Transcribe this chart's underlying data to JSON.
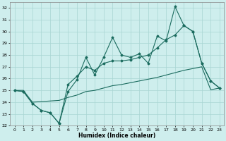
{
  "xlabel": "Humidex (Indice chaleur)",
  "xlim": [
    -0.5,
    23.5
  ],
  "ylim": [
    22,
    32.5
  ],
  "yticks": [
    22,
    23,
    24,
    25,
    26,
    27,
    28,
    29,
    30,
    31,
    32
  ],
  "xticks": [
    0,
    1,
    2,
    3,
    4,
    5,
    6,
    7,
    8,
    9,
    10,
    11,
    12,
    13,
    14,
    15,
    16,
    17,
    18,
    19,
    20,
    21,
    22,
    23
  ],
  "bg_color": "#ceeeed",
  "grid_color": "#a8d5d3",
  "line_color": "#1a6b5e",
  "line1_y": [
    25.0,
    24.9,
    23.9,
    23.3,
    23.1,
    22.2,
    24.9,
    25.9,
    27.8,
    26.3,
    27.8,
    29.5,
    28.0,
    27.8,
    28.1,
    27.3,
    29.6,
    29.2,
    32.1,
    30.5,
    30.0,
    27.3,
    25.8,
    25.2
  ],
  "line2_y": [
    25.0,
    24.9,
    23.9,
    23.3,
    23.1,
    22.2,
    25.5,
    26.2,
    27.0,
    26.7,
    27.3,
    27.5,
    27.5,
    27.6,
    27.8,
    28.0,
    28.6,
    29.3,
    29.7,
    30.5,
    30.0,
    27.3,
    25.8,
    25.2
  ],
  "line3_y": [
    25.0,
    25.0,
    24.0,
    24.05,
    24.1,
    24.15,
    24.4,
    24.6,
    24.9,
    25.0,
    25.2,
    25.4,
    25.5,
    25.65,
    25.8,
    25.95,
    26.1,
    26.3,
    26.5,
    26.7,
    26.85,
    27.0,
    25.05,
    25.2
  ]
}
